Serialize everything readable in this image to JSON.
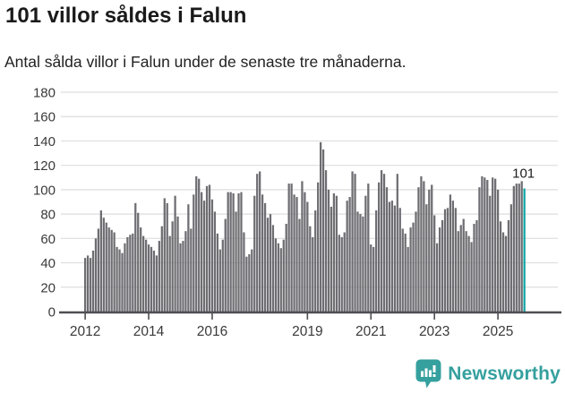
{
  "header": {
    "title": "101 villor såldes i Falun",
    "subtitle": "Antal sålda villor i Falun under de senaste tre månaderna."
  },
  "chart_data": {
    "type": "bar",
    "title": "101 villor såldes i Falun",
    "xlabel": "",
    "ylabel": "",
    "x_start": "2012-01",
    "x_end": "2025-11",
    "x_unit": "month",
    "ylim": [
      0,
      180
    ],
    "yticks": [
      0,
      20,
      40,
      60,
      80,
      100,
      120,
      140,
      160,
      180
    ],
    "xtick_labels": [
      "2012",
      "2014",
      "2016",
      "2019",
      "2021",
      "2023",
      "2025"
    ],
    "xtick_month_indices": [
      0,
      24,
      48,
      84,
      108,
      132,
      156
    ],
    "grid": true,
    "legend": false,
    "values": [
      44,
      46,
      44,
      50,
      60,
      68,
      83,
      77,
      73,
      69,
      67,
      65,
      53,
      51,
      48,
      56,
      61,
      63,
      64,
      89,
      81,
      69,
      62,
      59,
      55,
      53,
      50,
      46,
      58,
      70,
      93,
      89,
      62,
      74,
      95,
      78,
      56,
      58,
      66,
      88,
      68,
      96,
      111,
      109,
      98,
      91,
      103,
      104,
      92,
      82,
      64,
      51,
      59,
      76,
      98,
      98,
      97,
      82,
      97,
      98,
      65,
      45,
      47,
      51,
      95,
      113,
      115,
      96,
      89,
      77,
      80,
      71,
      60,
      56,
      52,
      59,
      72,
      105,
      105,
      96,
      94,
      76,
      107,
      98,
      90,
      70,
      61,
      83,
      106,
      139,
      133,
      116,
      100,
      86,
      97,
      95,
      63,
      61,
      65,
      91,
      94,
      115,
      113,
      82,
      80,
      78,
      95,
      105,
      55,
      53,
      83,
      106,
      116,
      113,
      102,
      90,
      91,
      87,
      113,
      85,
      68,
      64,
      53,
      69,
      73,
      82,
      102,
      111,
      107,
      88,
      100,
      104,
      79,
      56,
      69,
      75,
      84,
      85,
      96,
      91,
      85,
      66,
      71,
      76,
      66,
      62,
      57,
      72,
      75,
      102,
      111,
      110,
      108,
      95,
      110,
      109,
      100,
      74,
      65,
      62,
      75,
      88,
      103,
      105,
      105,
      107,
      101
    ],
    "highlight_index": 166,
    "highlight_value": 101,
    "annotation": "101",
    "bar_color": "#6d6d72",
    "highlight_color": "#0fa3a3",
    "grid_color": "#dedede",
    "axis_color": "#4e4e53",
    "tick_text_color": "#3a3a3a"
  },
  "footer": {
    "brand": "Newsworthy",
    "brand_color": "#35a09e",
    "logo_icon": "bar-chart-speech-bubble"
  }
}
